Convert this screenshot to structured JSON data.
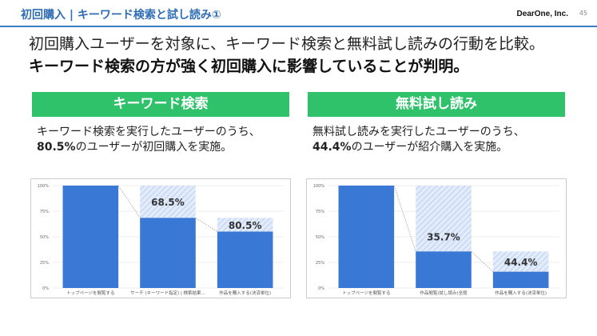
{
  "header": {
    "title": "初回購入 | キーワード検索と試し読み①",
    "brand": "DearOne, Inc.",
    "page": "45"
  },
  "summary": {
    "line1": "初回購入ユーザーを対象に、キーワード検索と無料試し読みの行動を比較。",
    "line2": "キーワード検索の方が強く初回購入に影響していることが判明。"
  },
  "colors": {
    "accent": "#2f6db5",
    "banner": "#2fc26b",
    "bar": "#3a78d6",
    "ghost": "#c7d8f3"
  },
  "panels": [
    {
      "banner": "キーワード検索",
      "desc_line1": "キーワード検索を実行したユーザーのうち、",
      "desc_value": "80.5%",
      "desc_rest": "のユーザーが初回購入を実施。"
    },
    {
      "banner": "無料試し読み",
      "desc_line1": "無料試し読みを実行したユーザーのうち、",
      "desc_value": "44.4%",
      "desc_rest": "のユーザーが紹介購入を実施。"
    }
  ],
  "chart_data": [
    {
      "type": "bar",
      "ylim": [
        0,
        100
      ],
      "yticks": [
        "0%",
        "25%",
        "50%",
        "75%",
        "100%"
      ],
      "grid": true,
      "categories": [
        "トップページを閲覧する",
        "サーチ (キーワード指定) | 検索結果...",
        "作品を購入する(決済単位)"
      ],
      "values": [
        100,
        68.5,
        55.1
      ],
      "previous": [
        null,
        100,
        68.5
      ],
      "labels": [
        "",
        "68.5%",
        "80.5%"
      ]
    },
    {
      "type": "bar",
      "ylim": [
        0,
        100
      ],
      "yticks": [
        "0%",
        "25%",
        "50%",
        "75%",
        "100%"
      ],
      "grid": true,
      "categories": [
        "トップページを閲覧する",
        "作品閲覧(試し読み)全般",
        "作品を購入する(決済単位)"
      ],
      "values": [
        100,
        35.7,
        15.9
      ],
      "previous": [
        null,
        100,
        35.7
      ],
      "labels": [
        "",
        "35.7%",
        "44.4%"
      ]
    }
  ]
}
